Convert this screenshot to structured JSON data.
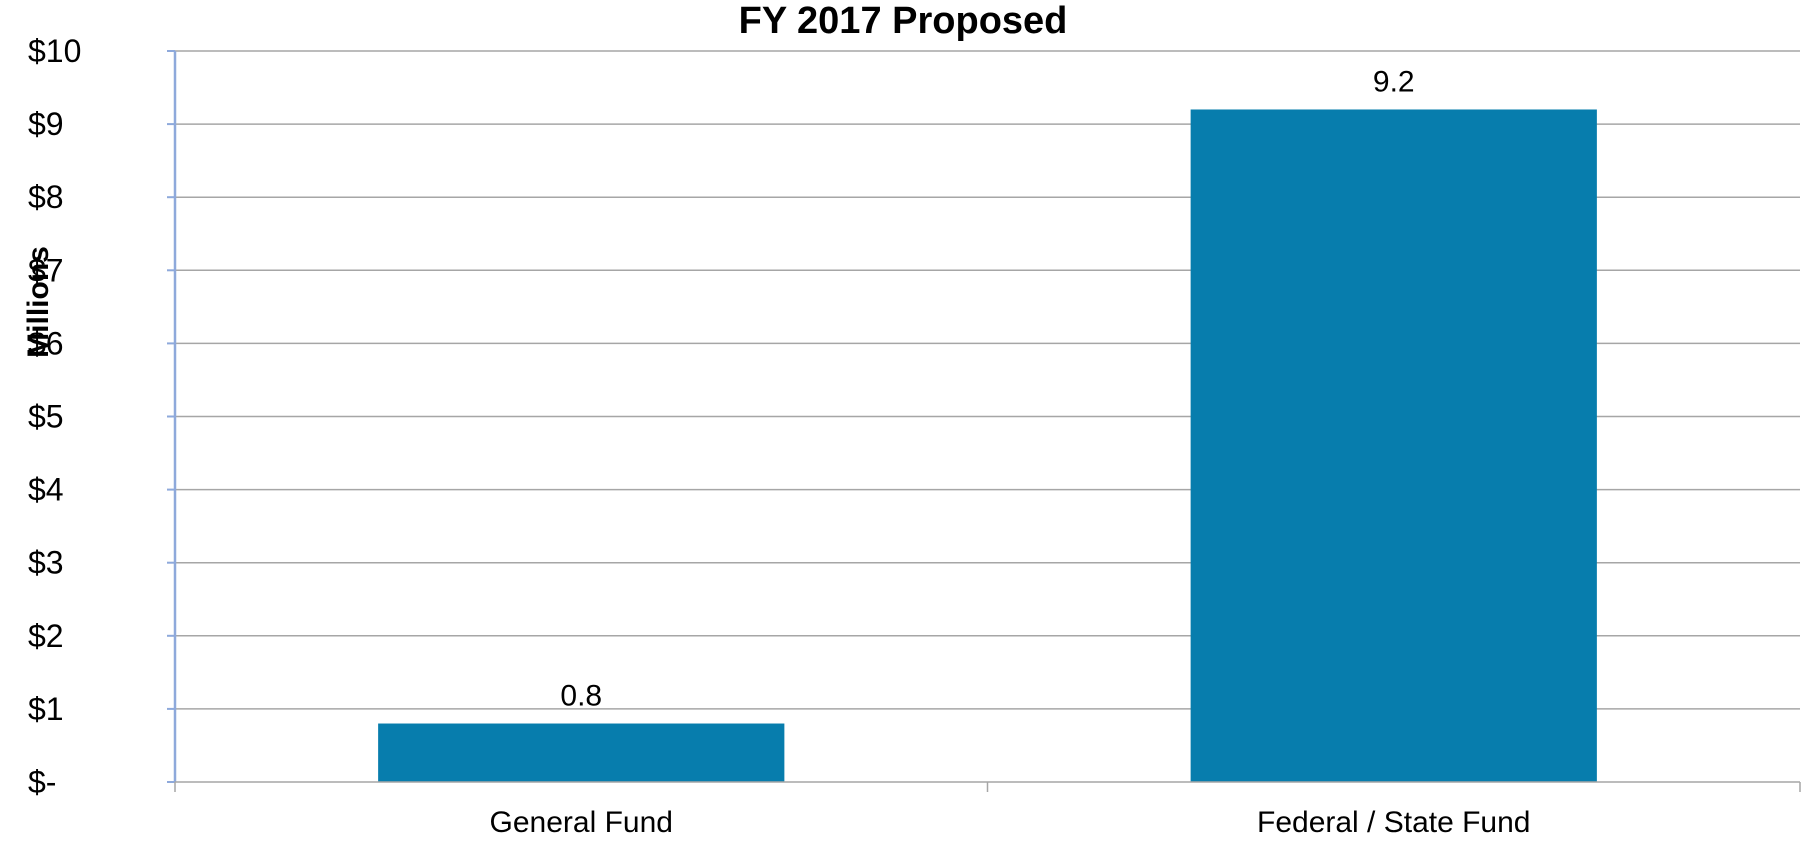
{
  "chart_data": {
    "type": "bar",
    "title": "FY 2017 Proposed",
    "xlabel": "",
    "ylabel": "Millions",
    "categories": [
      "General Fund",
      "Federal / State Fund"
    ],
    "values": [
      0.8,
      9.2
    ],
    "data_labels": [
      "0.8",
      "9.2"
    ],
    "ylim": [
      0,
      10
    ],
    "yticks": [
      0,
      1,
      2,
      3,
      4,
      5,
      6,
      7,
      8,
      9,
      10
    ],
    "ytick_labels": [
      "$-",
      "$1",
      "$2",
      "$3",
      "$4",
      "$5",
      "$6",
      "$7",
      "$8",
      "$9",
      "$10"
    ],
    "grid": true,
    "legend": "none",
    "colors": {
      "bar": "#077DAD",
      "grid": "#A6A6A6",
      "axis": "#8EA9DB"
    }
  }
}
